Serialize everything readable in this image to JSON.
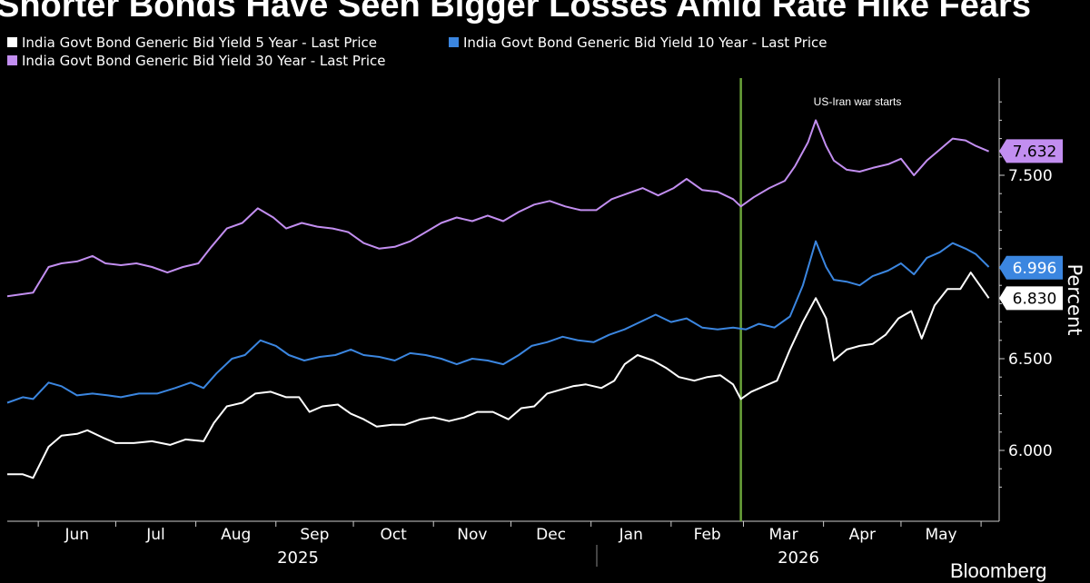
{
  "title": "Shorter Bonds Have Seen Bigger Losses Amid  Rate Hike Fears",
  "colors": {
    "background": "#000000",
    "y5": "#ffffff",
    "y10": "#3b86e0",
    "y30": "#c28ef0",
    "event_line": "#6aa33a",
    "axis": "#cccccc"
  },
  "legend": [
    {
      "label": "India Govt Bond Generic Bid Yield 5 Year - Last Price",
      "color": "#ffffff"
    },
    {
      "label": "India Govt Bond Generic Bid Yield 10 Year - Last Price",
      "color": "#3b86e0"
    },
    {
      "label": "India Govt Bond Generic Bid Yield 30 Year - Last Price",
      "color": "#c28ef0"
    }
  ],
  "annotation": "US-Iran war starts",
  "ylabel": "Percent",
  "logo": "Bloomberg",
  "chart_data": {
    "type": "line",
    "x_axis": {
      "months": [
        "Jun",
        "Jul",
        "Aug",
        "Sep",
        "Oct",
        "Nov",
        "Dec",
        "Jan",
        "Feb",
        "Mar",
        "Apr",
        "May"
      ],
      "years": [
        "2025",
        "2026"
      ]
    },
    "ylim": [
      5.76,
      7.95
    ],
    "yticks": [
      "6.000",
      "6.500",
      "7.500"
    ],
    "grid": false,
    "legend_position": "top-left",
    "event_date": "2026-02-28",
    "series": [
      {
        "name": "India Govt Bond Generic Bid Yield 5 Year - Last Price",
        "last": "6.830",
        "points": [
          [
            "2025-05-20",
            5.87
          ],
          [
            "2025-05-26",
            5.87
          ],
          [
            "2025-05-30",
            5.85
          ],
          [
            "2025-06-05",
            6.02
          ],
          [
            "2025-06-10",
            6.08
          ],
          [
            "2025-06-16",
            6.09
          ],
          [
            "2025-06-20",
            6.11
          ],
          [
            "2025-06-26",
            6.07
          ],
          [
            "2025-07-01",
            6.04
          ],
          [
            "2025-07-08",
            6.04
          ],
          [
            "2025-07-15",
            6.05
          ],
          [
            "2025-07-22",
            6.03
          ],
          [
            "2025-07-28",
            6.06
          ],
          [
            "2025-08-04",
            6.05
          ],
          [
            "2025-08-08",
            6.15
          ],
          [
            "2025-08-13",
            6.24
          ],
          [
            "2025-08-19",
            6.26
          ],
          [
            "2025-08-24",
            6.31
          ],
          [
            "2025-08-30",
            6.32
          ],
          [
            "2025-09-05",
            6.29
          ],
          [
            "2025-09-10",
            6.29
          ],
          [
            "2025-09-14",
            6.21
          ],
          [
            "2025-09-19",
            6.24
          ],
          [
            "2025-09-25",
            6.25
          ],
          [
            "2025-09-30",
            6.2
          ],
          [
            "2025-10-05",
            6.17
          ],
          [
            "2025-10-10",
            6.13
          ],
          [
            "2025-10-16",
            6.14
          ],
          [
            "2025-10-21",
            6.14
          ],
          [
            "2025-10-27",
            6.17
          ],
          [
            "2025-11-01",
            6.18
          ],
          [
            "2025-11-07",
            6.16
          ],
          [
            "2025-11-13",
            6.18
          ],
          [
            "2025-11-18",
            6.21
          ],
          [
            "2025-11-24",
            6.21
          ],
          [
            "2025-11-30",
            6.17
          ],
          [
            "2025-12-05",
            6.23
          ],
          [
            "2025-12-10",
            6.24
          ],
          [
            "2025-12-15",
            6.31
          ],
          [
            "2025-12-20",
            6.33
          ],
          [
            "2025-12-25",
            6.35
          ],
          [
            "2025-12-30",
            6.36
          ],
          [
            "2026-01-05",
            6.34
          ],
          [
            "2026-01-10",
            6.38
          ],
          [
            "2026-01-14",
            6.47
          ],
          [
            "2026-01-19",
            6.52
          ],
          [
            "2026-01-25",
            6.49
          ],
          [
            "2026-01-30",
            6.45
          ],
          [
            "2026-02-04",
            6.4
          ],
          [
            "2026-02-10",
            6.38
          ],
          [
            "2026-02-15",
            6.4
          ],
          [
            "2026-02-20",
            6.41
          ],
          [
            "2026-02-25",
            6.36
          ],
          [
            "2026-02-28",
            6.28
          ],
          [
            "2026-03-04",
            6.32
          ],
          [
            "2026-03-09",
            6.35
          ],
          [
            "2026-03-14",
            6.38
          ],
          [
            "2026-03-19",
            6.55
          ],
          [
            "2026-03-24",
            6.7
          ],
          [
            "2026-03-29",
            6.83
          ],
          [
            "2026-04-02",
            6.72
          ],
          [
            "2026-04-05",
            6.49
          ],
          [
            "2026-04-10",
            6.55
          ],
          [
            "2026-04-15",
            6.57
          ],
          [
            "2026-04-20",
            6.58
          ],
          [
            "2026-04-25",
            6.63
          ],
          [
            "2026-04-30",
            6.72
          ],
          [
            "2026-05-05",
            6.76
          ],
          [
            "2026-05-09",
            6.61
          ],
          [
            "2026-05-14",
            6.79
          ],
          [
            "2026-05-19",
            6.88
          ],
          [
            "2026-05-24",
            6.88
          ],
          [
            "2026-05-28",
            6.97
          ],
          [
            "2026-06-01",
            6.89
          ],
          [
            "2026-06-04",
            6.83
          ]
        ]
      },
      {
        "name": "India Govt Bond Generic Bid Yield 10 Year - Last Price",
        "last": "6.996",
        "points": [
          [
            "2025-05-20",
            6.26
          ],
          [
            "2025-05-26",
            6.29
          ],
          [
            "2025-05-30",
            6.28
          ],
          [
            "2025-06-05",
            6.37
          ],
          [
            "2025-06-10",
            6.35
          ],
          [
            "2025-06-16",
            6.3
          ],
          [
            "2025-06-22",
            6.31
          ],
          [
            "2025-06-28",
            6.3
          ],
          [
            "2025-07-03",
            6.29
          ],
          [
            "2025-07-10",
            6.31
          ],
          [
            "2025-07-17",
            6.31
          ],
          [
            "2025-07-24",
            6.34
          ],
          [
            "2025-07-30",
            6.37
          ],
          [
            "2025-08-04",
            6.34
          ],
          [
            "2025-08-09",
            6.42
          ],
          [
            "2025-08-15",
            6.5
          ],
          [
            "2025-08-20",
            6.52
          ],
          [
            "2025-08-26",
            6.6
          ],
          [
            "2025-09-01",
            6.57
          ],
          [
            "2025-09-06",
            6.52
          ],
          [
            "2025-09-12",
            6.49
          ],
          [
            "2025-09-18",
            6.51
          ],
          [
            "2025-09-24",
            6.52
          ],
          [
            "2025-09-30",
            6.55
          ],
          [
            "2025-10-05",
            6.52
          ],
          [
            "2025-10-11",
            6.51
          ],
          [
            "2025-10-17",
            6.49
          ],
          [
            "2025-10-23",
            6.53
          ],
          [
            "2025-10-29",
            6.52
          ],
          [
            "2025-11-04",
            6.5
          ],
          [
            "2025-11-10",
            6.47
          ],
          [
            "2025-11-16",
            6.5
          ],
          [
            "2025-11-22",
            6.49
          ],
          [
            "2025-11-28",
            6.47
          ],
          [
            "2025-12-04",
            6.52
          ],
          [
            "2025-12-09",
            6.57
          ],
          [
            "2025-12-15",
            6.59
          ],
          [
            "2025-12-21",
            6.62
          ],
          [
            "2025-12-27",
            6.6
          ],
          [
            "2026-01-02",
            6.59
          ],
          [
            "2026-01-08",
            6.63
          ],
          [
            "2026-01-14",
            6.66
          ],
          [
            "2026-01-20",
            6.7
          ],
          [
            "2026-01-26",
            6.74
          ],
          [
            "2026-02-01",
            6.7
          ],
          [
            "2026-02-07",
            6.72
          ],
          [
            "2026-02-13",
            6.67
          ],
          [
            "2026-02-19",
            6.66
          ],
          [
            "2026-02-25",
            6.67
          ],
          [
            "2026-03-02",
            6.66
          ],
          [
            "2026-03-07",
            6.69
          ],
          [
            "2026-03-13",
            6.67
          ],
          [
            "2026-03-19",
            6.73
          ],
          [
            "2026-03-24",
            6.9
          ],
          [
            "2026-03-29",
            7.14
          ],
          [
            "2026-04-02",
            7.0
          ],
          [
            "2026-04-05",
            6.93
          ],
          [
            "2026-04-10",
            6.92
          ],
          [
            "2026-04-15",
            6.9
          ],
          [
            "2026-04-20",
            6.95
          ],
          [
            "2026-04-26",
            6.98
          ],
          [
            "2026-05-01",
            7.02
          ],
          [
            "2026-05-06",
            6.96
          ],
          [
            "2026-05-11",
            7.05
          ],
          [
            "2026-05-16",
            7.08
          ],
          [
            "2026-05-21",
            7.13
          ],
          [
            "2026-05-26",
            7.1
          ],
          [
            "2026-05-30",
            7.07
          ],
          [
            "2026-06-04",
            7.0
          ]
        ]
      },
      {
        "name": "India Govt Bond Generic Bid Yield 30 Year - Last Price",
        "last": "7.632",
        "points": [
          [
            "2025-05-20",
            6.84
          ],
          [
            "2025-05-25",
            6.85
          ],
          [
            "2025-05-30",
            6.86
          ],
          [
            "2025-06-05",
            7.0
          ],
          [
            "2025-06-10",
            7.02
          ],
          [
            "2025-06-16",
            7.03
          ],
          [
            "2025-06-22",
            7.06
          ],
          [
            "2025-06-27",
            7.02
          ],
          [
            "2025-07-03",
            7.01
          ],
          [
            "2025-07-09",
            7.02
          ],
          [
            "2025-07-15",
            7.0
          ],
          [
            "2025-07-21",
            6.97
          ],
          [
            "2025-07-27",
            7.0
          ],
          [
            "2025-08-02",
            7.02
          ],
          [
            "2025-08-07",
            7.11
          ],
          [
            "2025-08-13",
            7.21
          ],
          [
            "2025-08-19",
            7.24
          ],
          [
            "2025-08-25",
            7.32
          ],
          [
            "2025-08-31",
            7.27
          ],
          [
            "2025-09-05",
            7.21
          ],
          [
            "2025-09-11",
            7.24
          ],
          [
            "2025-09-17",
            7.22
          ],
          [
            "2025-09-23",
            7.21
          ],
          [
            "2025-09-29",
            7.19
          ],
          [
            "2025-10-05",
            7.13
          ],
          [
            "2025-10-11",
            7.1
          ],
          [
            "2025-10-17",
            7.11
          ],
          [
            "2025-10-23",
            7.14
          ],
          [
            "2025-10-29",
            7.19
          ],
          [
            "2025-11-04",
            7.24
          ],
          [
            "2025-11-10",
            7.27
          ],
          [
            "2025-11-16",
            7.25
          ],
          [
            "2025-11-22",
            7.28
          ],
          [
            "2025-11-28",
            7.25
          ],
          [
            "2025-12-04",
            7.3
          ],
          [
            "2025-12-10",
            7.34
          ],
          [
            "2025-12-16",
            7.36
          ],
          [
            "2025-12-22",
            7.33
          ],
          [
            "2025-12-28",
            7.31
          ],
          [
            "2026-01-03",
            7.31
          ],
          [
            "2026-01-09",
            7.37
          ],
          [
            "2026-01-15",
            7.4
          ],
          [
            "2026-01-21",
            7.43
          ],
          [
            "2026-01-27",
            7.39
          ],
          [
            "2026-02-02",
            7.43
          ],
          [
            "2026-02-07",
            7.48
          ],
          [
            "2026-02-13",
            7.42
          ],
          [
            "2026-02-19",
            7.41
          ],
          [
            "2026-02-25",
            7.37
          ],
          [
            "2026-02-28",
            7.33
          ],
          [
            "2026-03-05",
            7.38
          ],
          [
            "2026-03-11",
            7.43
          ],
          [
            "2026-03-17",
            7.47
          ],
          [
            "2026-03-21",
            7.55
          ],
          [
            "2026-03-26",
            7.68
          ],
          [
            "2026-03-29",
            7.8
          ],
          [
            "2026-04-02",
            7.66
          ],
          [
            "2026-04-05",
            7.58
          ],
          [
            "2026-04-10",
            7.53
          ],
          [
            "2026-04-15",
            7.52
          ],
          [
            "2026-04-20",
            7.54
          ],
          [
            "2026-04-26",
            7.56
          ],
          [
            "2026-05-01",
            7.59
          ],
          [
            "2026-05-06",
            7.5
          ],
          [
            "2026-05-11",
            7.58
          ],
          [
            "2026-05-16",
            7.64
          ],
          [
            "2026-05-21",
            7.7
          ],
          [
            "2026-05-26",
            7.69
          ],
          [
            "2026-05-30",
            7.66
          ],
          [
            "2026-06-04",
            7.63
          ]
        ]
      }
    ]
  }
}
